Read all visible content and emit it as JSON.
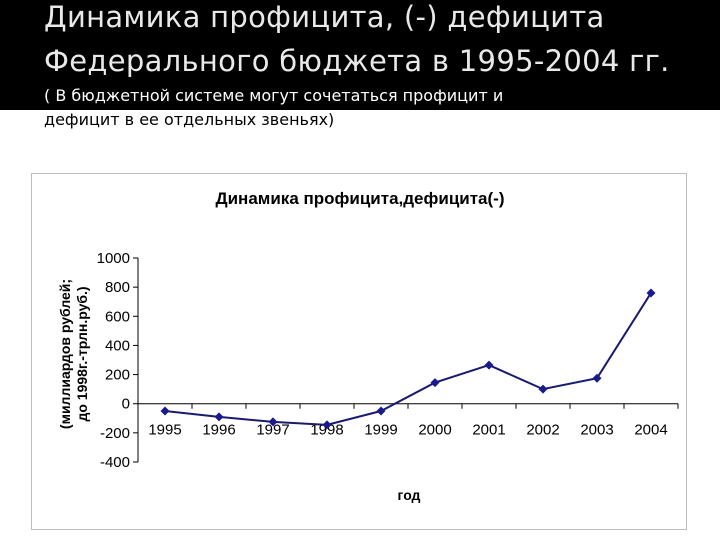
{
  "slide": {
    "title_line1": "Динамика профицита, (-) дефицита",
    "title_line2": "Федерального бюджета в 1995-2004 гг.",
    "subtitle_line1": "( В бюджетной системе могут сочетаться профицит и",
    "subtitle_line2": "дефицит в ее отдельных звеньях)"
  },
  "colors": {
    "header_bg": "#000000",
    "line": "#1a1a6e",
    "marker": "#1a1a8c"
  },
  "chart_data": {
    "type": "line",
    "title": "Динамика профицита,дефицита(-)",
    "xlabel": "год",
    "ylabel_line1": "(миллиардов рублей;",
    "ylabel_line2": "до 1998г.-трлн.руб.)",
    "categories": [
      "1995",
      "1996",
      "1997",
      "1998",
      "1999",
      "2000",
      "2001",
      "2002",
      "2003",
      "2004"
    ],
    "series": [
      {
        "values": [
          -50,
          -90,
          -125,
          -145,
          -50,
          145,
          265,
          100,
          175,
          760
        ]
      }
    ],
    "ylim": [
      -400,
      1000
    ],
    "yticks": [
      -400,
      -200,
      0,
      200,
      400,
      600,
      800,
      1000
    ],
    "ytick_labels": [
      "-400",
      "-200",
      "0",
      "200",
      "400",
      "600",
      "800",
      "1000"
    ],
    "grid": false,
    "legend": "none"
  }
}
